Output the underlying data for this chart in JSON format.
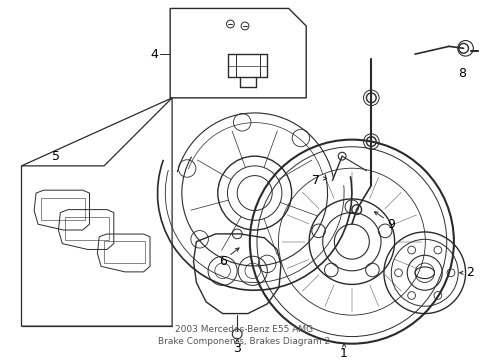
{
  "bg_color": "#ffffff",
  "line_color": "#2a2a2a",
  "label_color": "#000000",
  "figsize": [
    4.89,
    3.6
  ],
  "dpi": 100,
  "title": "2003 Mercedes-Benz E55 AMG\nBrake Components, Brakes Diagram 2"
}
